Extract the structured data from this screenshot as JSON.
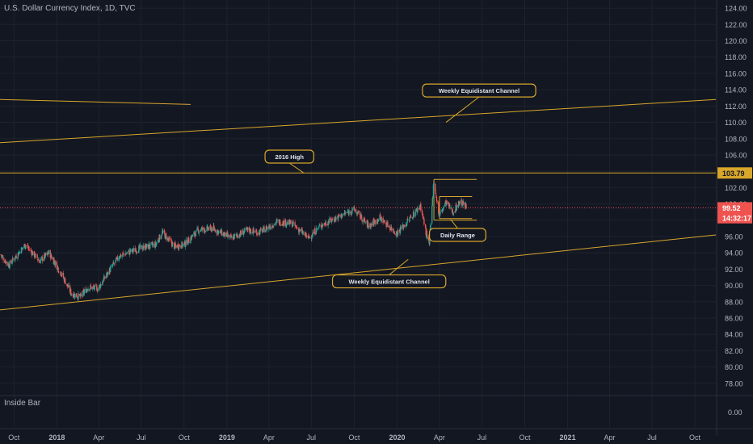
{
  "title": "U.S. Dollar Currency Index, 1D, TVC",
  "sub_pane_label": "Inside Bar",
  "sub_pane_value": "0.00",
  "colors": {
    "background": "#131722",
    "grid": "#1e222d",
    "annotation": "#d8a62a",
    "price_line": "#ef5350",
    "candle_up": "#26a69a",
    "candle_down": "#ef5350",
    "axis_text": "#b2b5be"
  },
  "chart_data": {
    "type": "candlestick",
    "title": "U.S. Dollar Currency Index, 1D, TVC",
    "ylim": [
      76.5,
      125
    ],
    "y_ticks": [
      78,
      80,
      82,
      84,
      86,
      88,
      90,
      92,
      94,
      96,
      98,
      100,
      102,
      104,
      106,
      108,
      110,
      112,
      114,
      116,
      118,
      120,
      122,
      124
    ],
    "y_tick_labels": [
      "78.00",
      "80.00",
      "82.00",
      "84.00",
      "86.00",
      "88.00",
      "90.00",
      "92.00",
      "94.00",
      "96.00",
      "98.00",
      "100.00",
      "102.00",
      "104.00",
      "106.00",
      "108.00",
      "110.00",
      "112.00",
      "114.00",
      "116.00",
      "118.00",
      "120.00",
      "122.00",
      "124.00"
    ],
    "x_range": [
      "2017-09-01",
      "2021-11-15"
    ],
    "x_ticks": [
      {
        "date": "2017-10-01",
        "label": "Oct"
      },
      {
        "date": "2018-01-01",
        "label": "2018"
      },
      {
        "date": "2018-04-01",
        "label": "Apr"
      },
      {
        "date": "2018-07-01",
        "label": "Jul"
      },
      {
        "date": "2018-10-01",
        "label": "Oct"
      },
      {
        "date": "2019-01-01",
        "label": "2019"
      },
      {
        "date": "2019-04-01",
        "label": "Apr"
      },
      {
        "date": "2019-07-01",
        "label": "Jul"
      },
      {
        "date": "2019-10-01",
        "label": "Oct"
      },
      {
        "date": "2020-01-01",
        "label": "2020"
      },
      {
        "date": "2020-04-01",
        "label": "Apr"
      },
      {
        "date": "2020-07-01",
        "label": "Jul"
      },
      {
        "date": "2020-10-01",
        "label": "Oct"
      },
      {
        "date": "2021-01-01",
        "label": "2021"
      },
      {
        "date": "2021-04-01",
        "label": "Apr"
      },
      {
        "date": "2021-07-01",
        "label": "Jul"
      },
      {
        "date": "2021-10-01",
        "label": "Oct"
      }
    ],
    "price_path": [
      [
        "2017-09-01",
        93.8
      ],
      [
        "2017-09-20",
        92.5
      ],
      [
        "2017-10-25",
        95.0
      ],
      [
        "2017-11-25",
        93.0
      ],
      [
        "2017-12-15",
        94.0
      ],
      [
        "2018-01-10",
        91.5
      ],
      [
        "2018-02-01",
        89.0
      ],
      [
        "2018-02-20",
        88.6
      ],
      [
        "2018-03-10",
        89.8
      ],
      [
        "2018-03-30",
        89.6
      ],
      [
        "2018-04-20",
        91.5
      ],
      [
        "2018-05-15",
        93.6
      ],
      [
        "2018-06-10",
        94.2
      ],
      [
        "2018-07-01",
        94.6
      ],
      [
        "2018-08-01",
        95.0
      ],
      [
        "2018-08-15",
        96.5
      ],
      [
        "2018-09-10",
        94.8
      ],
      [
        "2018-10-01",
        95.0
      ],
      [
        "2018-11-01",
        96.8
      ],
      [
        "2018-12-01",
        97.0
      ],
      [
        "2019-01-10",
        95.8
      ],
      [
        "2019-02-15",
        96.8
      ],
      [
        "2019-03-10",
        96.5
      ],
      [
        "2019-04-20",
        97.8
      ],
      [
        "2019-05-20",
        97.6
      ],
      [
        "2019-06-25",
        95.8
      ],
      [
        "2019-07-20",
        97.3
      ],
      [
        "2019-08-20",
        98.2
      ],
      [
        "2019-10-01",
        99.3
      ],
      [
        "2019-11-01",
        97.3
      ],
      [
        "2019-11-25",
        98.3
      ],
      [
        "2019-12-31",
        96.4
      ],
      [
        "2020-01-20",
        97.6
      ],
      [
        "2020-02-20",
        99.8
      ],
      [
        "2020-03-05",
        96.0
      ],
      [
        "2020-03-10",
        95.0
      ],
      [
        "2020-03-20",
        102.9
      ],
      [
        "2020-03-31",
        98.5
      ],
      [
        "2020-04-15",
        100.2
      ],
      [
        "2020-04-30",
        99.0
      ],
      [
        "2020-05-15",
        100.3
      ],
      [
        "2020-05-31",
        99.5
      ]
    ],
    "horizontal_lines": [
      {
        "name": "2016 High",
        "value": 103.79
      }
    ],
    "trend_lines": [
      {
        "name": "Weekly Equidistant Channel (upper)",
        "from": [
          "2017-09-01",
          107.5
        ],
        "to": [
          "2021-11-15",
          112.8
        ]
      },
      {
        "name": "Weekly Equidistant Channel (lower)",
        "from": [
          "2017-09-01",
          87.0
        ],
        "to": [
          "2021-11-15",
          96.2
        ]
      },
      {
        "name": "upper-left segment",
        "from": [
          "2017-09-01",
          112.8
        ],
        "to": [
          "2018-10-15",
          112.2
        ]
      }
    ],
    "range_boxes": [
      {
        "from": "2020-03-20",
        "to": "2020-06-20",
        "top": 103.0,
        "bottom": 98.0
      },
      {
        "from": "2020-04-01",
        "to": "2020-06-10",
        "top": 100.9,
        "bottom": 98.2
      }
    ],
    "annotations": [
      {
        "text": "Weekly Equidistant Channel",
        "label_price": 113.9,
        "label_date": "2020-06-25",
        "target": [
          "2020-04-15",
          110.0
        ]
      },
      {
        "text": "2016 High",
        "label_price": 105.8,
        "label_date": "2019-05-15",
        "target": [
          "2019-06-15",
          103.79
        ]
      },
      {
        "text": "Daily Range",
        "label_price": 96.2,
        "label_date": "2020-05-10",
        "target": [
          "2020-04-25",
          98.1
        ]
      },
      {
        "text": "Weekly Equidistant Channel",
        "label_price": 90.5,
        "label_date": "2019-12-15",
        "target": [
          "2020-01-25",
          93.2
        ]
      }
    ],
    "price_labels": [
      {
        "text": "103.79",
        "value": 103.79,
        "style": "level"
      },
      {
        "text": "99.52",
        "value": 99.52,
        "style": "last"
      },
      {
        "text": "14:32:17",
        "value": 98.3,
        "style": "timer"
      }
    ],
    "last_price": 99.52
  }
}
